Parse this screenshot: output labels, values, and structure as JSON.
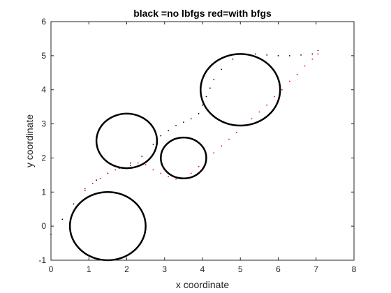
{
  "chart_data": {
    "type": "scatter",
    "title": "black =no lbfgs red=with bfgs",
    "xlabel": "x coordinate",
    "ylabel": "y coordinate",
    "xlim": [
      0,
      8
    ],
    "ylim": [
      -1,
      6
    ],
    "xticks": [
      0,
      1,
      2,
      3,
      4,
      5,
      6,
      7,
      8
    ],
    "yticks": [
      -1,
      0,
      1,
      2,
      3,
      4,
      5,
      6
    ],
    "grid": false,
    "obstacles": [
      {
        "cx": 1.5,
        "cy": 0.0,
        "r": 1.0
      },
      {
        "cx": 2.0,
        "cy": 2.5,
        "r": 0.8
      },
      {
        "cx": 3.5,
        "cy": 2.0,
        "r": 0.6
      },
      {
        "cx": 5.0,
        "cy": 4.0,
        "r": 1.05
      }
    ],
    "series": [
      {
        "color": "#000000",
        "x": [
          0.0,
          0.3,
          0.6,
          0.9,
          1.2,
          1.5,
          1.8,
          2.1,
          2.4,
          2.7,
          2.9,
          3.1,
          3.3,
          3.5,
          3.7,
          3.9,
          4.0,
          4.1,
          4.2,
          4.3,
          4.5,
          4.8,
          5.1,
          5.4,
          5.7,
          6.0,
          6.3,
          6.6,
          6.9,
          7.05
        ],
        "y": [
          -0.25,
          0.2,
          0.65,
          1.05,
          1.35,
          1.55,
          1.7,
          1.85,
          2.05,
          2.4,
          2.65,
          2.8,
          2.95,
          3.05,
          3.15,
          3.3,
          3.55,
          3.8,
          4.05,
          4.3,
          4.6,
          4.9,
          5.05,
          5.05,
          5.02,
          5.0,
          5.0,
          5.02,
          5.05,
          5.15
        ]
      },
      {
        "color": "#ff0000",
        "x": [
          0.9,
          1.1,
          1.3,
          1.5,
          1.7,
          1.9,
          2.1,
          2.3,
          2.5,
          2.7,
          2.9,
          3.1,
          3.3,
          3.5,
          3.7,
          3.9,
          4.1,
          4.3,
          4.5,
          4.7,
          4.9,
          5.1,
          5.3,
          5.5,
          5.7,
          5.9,
          6.1,
          6.3,
          6.5,
          6.7,
          6.9,
          7.05
        ],
        "y": [
          1.1,
          1.25,
          1.4,
          1.55,
          1.65,
          1.72,
          1.78,
          1.85,
          1.8,
          1.65,
          1.55,
          1.45,
          1.38,
          1.4,
          1.55,
          1.75,
          1.95,
          2.15,
          2.35,
          2.55,
          2.75,
          2.95,
          3.15,
          3.35,
          3.55,
          3.8,
          4.0,
          4.25,
          4.45,
          4.7,
          4.9,
          5.05
        ]
      }
    ]
  }
}
